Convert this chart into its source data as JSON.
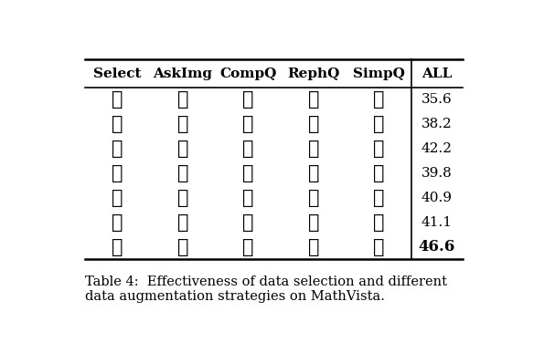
{
  "headers": [
    "Select",
    "AskImg",
    "CompQ",
    "RephQ",
    "SimpQ",
    "ALL"
  ],
  "rows": [
    [
      "x",
      "x",
      "x",
      "x",
      "x",
      "35.6"
    ],
    [
      "c",
      "x",
      "x",
      "x",
      "x",
      "38.2"
    ],
    [
      "c",
      "c",
      "x",
      "x",
      "x",
      "42.2"
    ],
    [
      "c",
      "x",
      "c",
      "x",
      "x",
      "39.8"
    ],
    [
      "c",
      "x",
      "x",
      "c",
      "x",
      "40.9"
    ],
    [
      "c",
      "x",
      "x",
      "x",
      "c",
      "41.1"
    ],
    [
      "c",
      "c",
      "c",
      "c",
      "c",
      "46.6"
    ]
  ],
  "caption": "Table 4:  Effectiveness of data selection and different\ndata augmentation strategies on MathVista.",
  "last_row_bold": true,
  "background_color": "#ffffff",
  "text_color": "#000000",
  "figsize": [
    5.95,
    3.76
  ],
  "dpi": 100
}
